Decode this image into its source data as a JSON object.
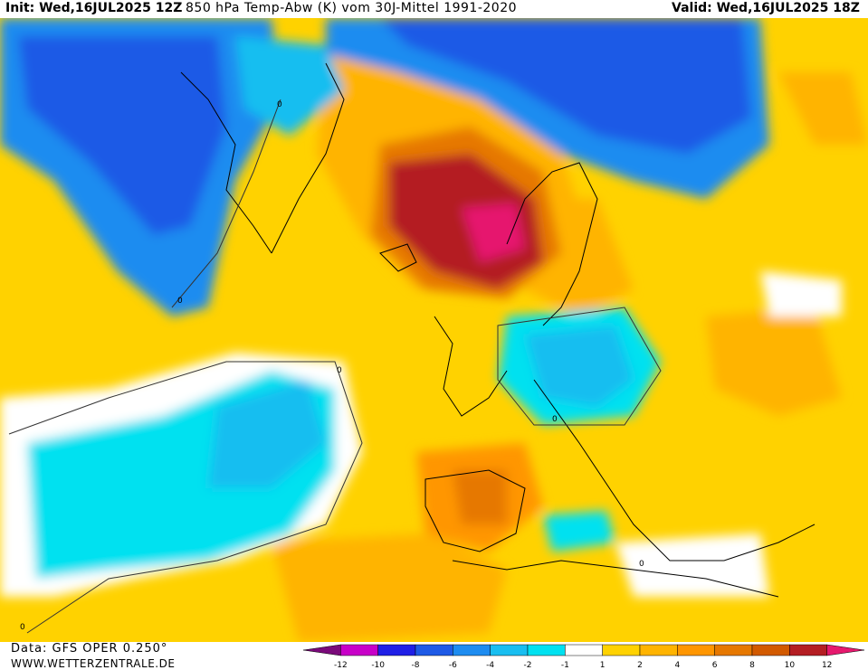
{
  "header": {
    "init": "Init: Wed,16JUL2025 12Z",
    "title": "850 hPa Temp-Abw (K) vom 30J-Mittel 1991-2020",
    "valid": "Valid: Wed,16JUL2025 18Z"
  },
  "footer": {
    "data_source": "Data: GFS OPER 0.250°",
    "website": "WWW.WETTERZENTRALE.DE"
  },
  "legend": {
    "ticks": [
      "-12",
      "-10",
      "-8",
      "-6",
      "-4",
      "-2",
      "-1",
      "1",
      "2",
      "4",
      "6",
      "8",
      "10",
      "12"
    ],
    "colors": [
      "#7a0a7a",
      "#c800c8",
      "#1f1fe6",
      "#1e5ae6",
      "#1e8cf0",
      "#19bef0",
      "#00e1f0",
      "#ffffff",
      "#ffd200",
      "#ffb400",
      "#ff9600",
      "#e67800",
      "#d25a00",
      "#b41e23",
      "#e6196e"
    ]
  },
  "map": {
    "contour_labels": [
      "0",
      "0",
      "0",
      "0",
      "0",
      "0"
    ]
  }
}
